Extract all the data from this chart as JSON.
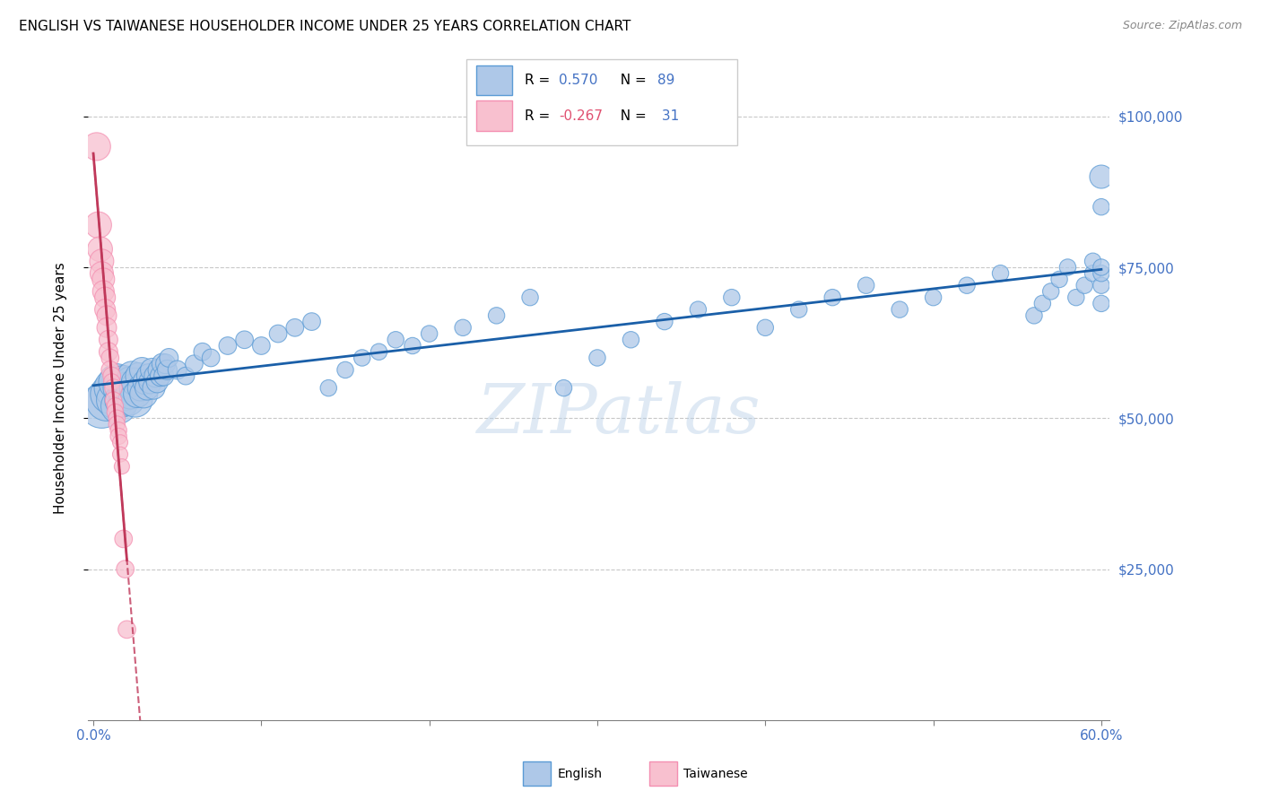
{
  "title": "ENGLISH VS TAIWANESE HOUSEHOLDER INCOME UNDER 25 YEARS CORRELATION CHART",
  "source": "Source: ZipAtlas.com",
  "ylabel": "Householder Income Under 25 years",
  "watermark": "ZIPatlas",
  "ytick_labels": [
    "$25,000",
    "$50,000",
    "$75,000",
    "$100,000"
  ],
  "ytick_values": [
    25000,
    50000,
    75000,
    100000
  ],
  "ylim": [
    0,
    110000
  ],
  "xlim": [
    -0.003,
    0.605
  ],
  "blue_color": "#5b9bd5",
  "pink_color": "#f48fb1",
  "blue_fill": "#aec8e8",
  "pink_fill": "#f8c0cf",
  "trend_blue": "#1a5fa8",
  "trend_pink": "#c0385a",
  "english_x": [
    0.005,
    0.008,
    0.01,
    0.012,
    0.013,
    0.014,
    0.015,
    0.016,
    0.017,
    0.018,
    0.019,
    0.02,
    0.021,
    0.022,
    0.022,
    0.023,
    0.024,
    0.025,
    0.025,
    0.026,
    0.027,
    0.028,
    0.029,
    0.03,
    0.031,
    0.032,
    0.033,
    0.034,
    0.035,
    0.036,
    0.037,
    0.038,
    0.039,
    0.04,
    0.041,
    0.042,
    0.043,
    0.044,
    0.045,
    0.05,
    0.055,
    0.06,
    0.065,
    0.07,
    0.08,
    0.09,
    0.1,
    0.11,
    0.12,
    0.13,
    0.14,
    0.15,
    0.16,
    0.17,
    0.18,
    0.19,
    0.2,
    0.22,
    0.24,
    0.26,
    0.28,
    0.3,
    0.32,
    0.34,
    0.36,
    0.38,
    0.4,
    0.42,
    0.44,
    0.46,
    0.48,
    0.5,
    0.52,
    0.54,
    0.56,
    0.565,
    0.57,
    0.575,
    0.58,
    0.585,
    0.59,
    0.595,
    0.595,
    0.6,
    0.6,
    0.6,
    0.6,
    0.6,
    0.6
  ],
  "english_y": [
    52000,
    53000,
    54000,
    55000,
    53000,
    56000,
    52000,
    55000,
    53000,
    56000,
    54000,
    55000,
    53000,
    56000,
    54000,
    57000,
    55000,
    53000,
    56000,
    54000,
    57000,
    55000,
    58000,
    54000,
    56000,
    55000,
    57000,
    56000,
    58000,
    55000,
    57000,
    56000,
    58000,
    57000,
    59000,
    57000,
    59000,
    58000,
    60000,
    58000,
    57000,
    59000,
    61000,
    60000,
    62000,
    63000,
    62000,
    64000,
    65000,
    66000,
    55000,
    58000,
    60000,
    61000,
    63000,
    62000,
    64000,
    65000,
    67000,
    70000,
    55000,
    60000,
    63000,
    66000,
    68000,
    70000,
    65000,
    68000,
    70000,
    72000,
    68000,
    70000,
    72000,
    74000,
    67000,
    69000,
    71000,
    73000,
    75000,
    70000,
    72000,
    74000,
    76000,
    69000,
    72000,
    74000,
    85000,
    90000,
    75000
  ],
  "english_size": [
    500,
    450,
    400,
    380,
    360,
    340,
    320,
    300,
    300,
    280,
    280,
    260,
    250,
    240,
    230,
    220,
    210,
    300,
    200,
    190,
    180,
    170,
    160,
    200,
    160,
    150,
    150,
    140,
    140,
    130,
    130,
    120,
    120,
    110,
    110,
    100,
    100,
    100,
    90,
    90,
    80,
    80,
    80,
    80,
    80,
    80,
    80,
    80,
    80,
    80,
    70,
    70,
    70,
    70,
    70,
    70,
    70,
    70,
    70,
    70,
    70,
    70,
    70,
    70,
    70,
    70,
    70,
    70,
    70,
    70,
    70,
    70,
    70,
    70,
    70,
    70,
    70,
    70,
    70,
    70,
    70,
    70,
    70,
    70,
    70,
    70,
    70,
    140,
    70
  ],
  "taiwanese_x": [
    0.002,
    0.003,
    0.004,
    0.005,
    0.005,
    0.006,
    0.006,
    0.007,
    0.007,
    0.008,
    0.008,
    0.009,
    0.009,
    0.01,
    0.01,
    0.011,
    0.011,
    0.012,
    0.012,
    0.013,
    0.013,
    0.014,
    0.014,
    0.015,
    0.015,
    0.016,
    0.016,
    0.017,
    0.018,
    0.019,
    0.02
  ],
  "taiwanese_y": [
    95000,
    82000,
    78000,
    76000,
    74000,
    73000,
    71000,
    70000,
    68000,
    67000,
    65000,
    63000,
    61000,
    60000,
    58000,
    57000,
    56000,
    55000,
    53000,
    52000,
    51000,
    50000,
    49000,
    48000,
    47000,
    46000,
    44000,
    42000,
    30000,
    25000,
    15000
  ],
  "taiwanese_size": [
    200,
    180,
    160,
    150,
    140,
    130,
    120,
    110,
    110,
    100,
    100,
    90,
    90,
    80,
    80,
    80,
    70,
    80,
    70,
    70,
    70,
    70,
    70,
    70,
    70,
    60,
    60,
    60,
    80,
    80,
    80
  ]
}
